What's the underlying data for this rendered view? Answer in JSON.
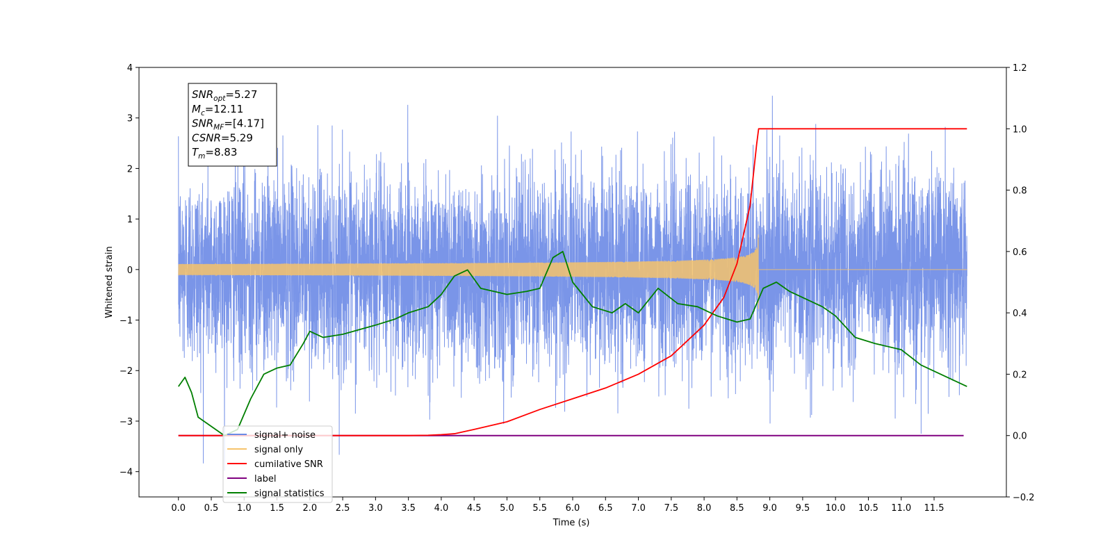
{
  "chart_data": {
    "type": "line",
    "xlabel": "Time (s)",
    "ylabel": "Whitened strain",
    "xlim": [
      -0.6,
      12.6
    ],
    "ylim": [
      -4.5,
      4.0
    ],
    "y2lim": [
      -0.2,
      1.2
    ],
    "x_ticks": [
      "0.0",
      "0.5",
      "1.0",
      "1.5",
      "2.0",
      "2.5",
      "3.0",
      "3.5",
      "4.0",
      "4.5",
      "5.0",
      "5.5",
      "6.0",
      "6.5",
      "7.0",
      "7.5",
      "8.0",
      "8.5",
      "9.0",
      "9.5",
      "10.0",
      "10.5",
      "11.0",
      "11.5"
    ],
    "y_ticks": [
      "4",
      "3",
      "2",
      "1",
      "0",
      "−1",
      "−2",
      "−3",
      "−4"
    ],
    "y2_ticks": [
      "1.2",
      "1.0",
      "0.8",
      "0.6",
      "0.4",
      "0.2",
      "0.0",
      "−0.2"
    ],
    "info_box": [
      {
        "sym": "SNR",
        "sub": "opt",
        "value": "=5.27"
      },
      {
        "sym": "M",
        "sub": "c",
        "value": "=12.11"
      },
      {
        "sym": "SNR",
        "sub": "MF",
        "value": "=[4.17]"
      },
      {
        "sym": "CSNR",
        "sub": "",
        "value": "=5.29"
      },
      {
        "sym": "T",
        "sub": "m",
        "value": "=8.83"
      }
    ],
    "legend": {
      "location": "lower left",
      "entries": [
        {
          "label": "signal+ noise",
          "color": "#6b8ae6"
        },
        {
          "label": "signal only",
          "color": "#f6c36b"
        },
        {
          "label": "cumilative SNR",
          "color": "#ff0000"
        },
        {
          "label": "label",
          "color": "#800080"
        },
        {
          "label": "signal statistics",
          "color": "#007f00"
        }
      ]
    },
    "series": [
      {
        "name": "signal+ noise",
        "axis": "left",
        "color": "#6b8ae6",
        "x_range": [
          0.0,
          12.0
        ],
        "sample_rate": 512,
        "approx_std": 0.95,
        "approx_min": -4.1,
        "approx_max": 3.6
      },
      {
        "name": "signal only",
        "axis": "left",
        "color": "#f6c36b",
        "x_range": [
          0.0,
          8.83
        ],
        "merger_time": 8.83,
        "peak_amplitude": 0.8
      },
      {
        "name": "cumilative SNR",
        "axis": "right",
        "color": "#ff0000",
        "x": [
          0.0,
          3.5,
          3.8,
          4.0,
          4.2,
          4.5,
          5.0,
          5.5,
          6.0,
          6.5,
          7.0,
          7.5,
          8.0,
          8.3,
          8.5,
          8.7,
          8.8,
          8.83,
          12.0
        ],
        "values": [
          0.0,
          0.0,
          0.001,
          0.003,
          0.006,
          0.02,
          0.045,
          0.085,
          0.12,
          0.155,
          0.2,
          0.26,
          0.36,
          0.45,
          0.56,
          0.75,
          0.95,
          1.0,
          1.0
        ]
      },
      {
        "name": "label",
        "axis": "right",
        "color": "#800080",
        "x": [
          0.0,
          11.95
        ],
        "values": [
          0.0,
          0.0
        ]
      },
      {
        "name": "signal statistics",
        "axis": "right",
        "color": "#007f00",
        "x": [
          0.0,
          0.1,
          0.2,
          0.3,
          0.5,
          0.7,
          0.9,
          1.1,
          1.3,
          1.5,
          1.7,
          1.9,
          2.0,
          2.2,
          2.5,
          3.0,
          3.3,
          3.5,
          3.8,
          4.0,
          4.2,
          4.4,
          4.6,
          5.0,
          5.3,
          5.5,
          5.7,
          5.85,
          6.0,
          6.3,
          6.6,
          6.8,
          7.0,
          7.3,
          7.6,
          7.9,
          8.2,
          8.5,
          8.7,
          8.9,
          9.1,
          9.3,
          9.5,
          9.8,
          10.0,
          10.3,
          10.6,
          11.0,
          11.3,
          11.6,
          12.0
        ],
        "values": [
          0.16,
          0.19,
          0.14,
          0.06,
          0.03,
          0.0,
          0.02,
          0.12,
          0.2,
          0.22,
          0.23,
          0.3,
          0.34,
          0.32,
          0.33,
          0.36,
          0.38,
          0.4,
          0.42,
          0.46,
          0.52,
          0.54,
          0.48,
          0.46,
          0.47,
          0.48,
          0.58,
          0.6,
          0.5,
          0.42,
          0.4,
          0.43,
          0.4,
          0.48,
          0.43,
          0.42,
          0.39,
          0.37,
          0.38,
          0.48,
          0.5,
          0.47,
          0.45,
          0.42,
          0.39,
          0.32,
          0.3,
          0.28,
          0.23,
          0.2,
          0.16
        ]
      }
    ]
  }
}
